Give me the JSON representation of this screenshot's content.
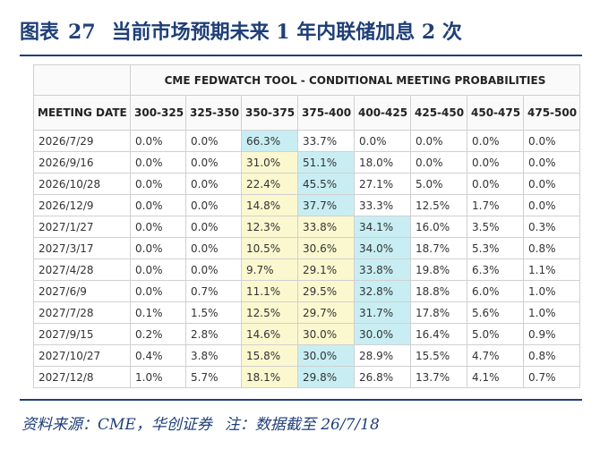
{
  "header": {
    "label": "图表",
    "number": "27",
    "text": "当前市场预期未来 1 年内联储加息 2 次"
  },
  "table": {
    "title": "CME FEDWATCH TOOL - CONDITIONAL MEETING PROBABILITIES",
    "columns": [
      "MEETING DATE",
      "300-325",
      "325-350",
      "350-375",
      "375-400",
      "400-425",
      "425-450",
      "450-475",
      "475-500"
    ],
    "rows": [
      {
        "date": "2026/7/29",
        "values": [
          "0.0%",
          "0.0%",
          "66.3%",
          "33.7%",
          "0.0%",
          "0.0%",
          "0.0%",
          "0.0%"
        ],
        "hl": [
          "",
          "",
          "b",
          "",
          "",
          "",
          "",
          ""
        ]
      },
      {
        "date": "2026/9/16",
        "values": [
          "0.0%",
          "0.0%",
          "31.0%",
          "51.1%",
          "18.0%",
          "0.0%",
          "0.0%",
          "0.0%"
        ],
        "hl": [
          "",
          "",
          "y",
          "b",
          "",
          "",
          "",
          ""
        ]
      },
      {
        "date": "2026/10/28",
        "values": [
          "0.0%",
          "0.0%",
          "22.4%",
          "45.5%",
          "27.1%",
          "5.0%",
          "0.0%",
          "0.0%"
        ],
        "hl": [
          "",
          "",
          "y",
          "b",
          "",
          "",
          "",
          ""
        ]
      },
      {
        "date": "2026/12/9",
        "values": [
          "0.0%",
          "0.0%",
          "14.8%",
          "37.7%",
          "33.3%",
          "12.5%",
          "1.7%",
          "0.0%"
        ],
        "hl": [
          "",
          "",
          "y",
          "b",
          "",
          "",
          "",
          ""
        ]
      },
      {
        "date": "2027/1/27",
        "values": [
          "0.0%",
          "0.0%",
          "12.3%",
          "33.8%",
          "34.1%",
          "16.0%",
          "3.5%",
          "0.3%"
        ],
        "hl": [
          "",
          "",
          "y",
          "y",
          "b",
          "",
          "",
          ""
        ]
      },
      {
        "date": "2027/3/17",
        "values": [
          "0.0%",
          "0.0%",
          "10.5%",
          "30.6%",
          "34.0%",
          "18.7%",
          "5.3%",
          "0.8%"
        ],
        "hl": [
          "",
          "",
          "y",
          "y",
          "b",
          "",
          "",
          ""
        ]
      },
      {
        "date": "2027/4/28",
        "values": [
          "0.0%",
          "0.0%",
          "9.7%",
          "29.1%",
          "33.8%",
          "19.8%",
          "6.3%",
          "1.1%"
        ],
        "hl": [
          "",
          "",
          "y",
          "y",
          "b",
          "",
          "",
          ""
        ]
      },
      {
        "date": "2027/6/9",
        "values": [
          "0.0%",
          "0.7%",
          "11.1%",
          "29.5%",
          "32.8%",
          "18.8%",
          "6.0%",
          "1.0%"
        ],
        "hl": [
          "",
          "",
          "y",
          "y",
          "b",
          "",
          "",
          ""
        ]
      },
      {
        "date": "2027/7/28",
        "values": [
          "0.1%",
          "1.5%",
          "12.5%",
          "29.7%",
          "31.7%",
          "17.8%",
          "5.6%",
          "1.0%"
        ],
        "hl": [
          "",
          "",
          "y",
          "y",
          "b",
          "",
          "",
          ""
        ]
      },
      {
        "date": "2027/9/15",
        "values": [
          "0.2%",
          "2.8%",
          "14.6%",
          "30.0%",
          "30.0%",
          "16.4%",
          "5.0%",
          "0.9%"
        ],
        "hl": [
          "",
          "",
          "y",
          "y",
          "b",
          "",
          "",
          ""
        ]
      },
      {
        "date": "2027/10/27",
        "values": [
          "0.4%",
          "3.8%",
          "15.8%",
          "30.0%",
          "28.9%",
          "15.5%",
          "4.7%",
          "0.8%"
        ],
        "hl": [
          "",
          "",
          "y",
          "b",
          "",
          "",
          "",
          ""
        ]
      },
      {
        "date": "2027/12/8",
        "values": [
          "1.0%",
          "5.7%",
          "18.1%",
          "29.8%",
          "26.8%",
          "13.7%",
          "4.1%",
          "0.7%"
        ],
        "hl": [
          "",
          "",
          "y",
          "b",
          "",
          "",
          "",
          ""
        ]
      }
    ]
  },
  "footer": {
    "source": "资料来源：CME，华创证券",
    "note": "注：数据截至 26/7/18"
  },
  "colors": {
    "brand": "#1f3f77",
    "highlight_yellow": "#fbf8d0",
    "highlight_blue": "#c8eef3"
  }
}
